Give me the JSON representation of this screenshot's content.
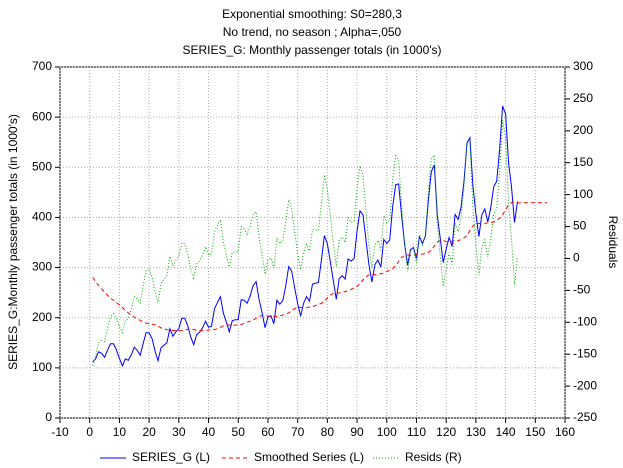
{
  "chart_data": {
    "type": "line",
    "title": [
      "Exponential smoothing:  S0=280,3",
      "No trend, no season   ; Alpha=,050",
      "SERIES_G: Monthly passenger totals (in 1000's)"
    ],
    "ylabel": "SERIES_G:Monthly passenger totals (in 1000's)",
    "y2label": "Residuals",
    "xlim": [
      -10,
      160
    ],
    "xticks": [
      -10,
      0,
      10,
      20,
      30,
      40,
      50,
      60,
      70,
      80,
      90,
      100,
      110,
      120,
      130,
      140,
      150,
      160
    ],
    "ylim": [
      0,
      700
    ],
    "yticks": [
      0,
      100,
      200,
      300,
      400,
      500,
      600,
      700
    ],
    "y2lim": [
      -250,
      300
    ],
    "y2ticks": [
      -250,
      -200,
      -150,
      -100,
      -50,
      0,
      50,
      100,
      150,
      200,
      250,
      300
    ],
    "grid": true,
    "x": [
      1,
      2,
      3,
      4,
      5,
      6,
      7,
      8,
      9,
      10,
      11,
      12,
      13,
      14,
      15,
      16,
      17,
      18,
      19,
      20,
      21,
      22,
      23,
      24,
      25,
      26,
      27,
      28,
      29,
      30,
      31,
      32,
      33,
      34,
      35,
      36,
      37,
      38,
      39,
      40,
      41,
      42,
      43,
      44,
      45,
      46,
      47,
      48,
      49,
      50,
      51,
      52,
      53,
      54,
      55,
      56,
      57,
      58,
      59,
      60,
      61,
      62,
      63,
      64,
      65,
      66,
      67,
      68,
      69,
      70,
      71,
      72,
      73,
      74,
      75,
      76,
      77,
      78,
      79,
      80,
      81,
      82,
      83,
      84,
      85,
      86,
      87,
      88,
      89,
      90,
      91,
      92,
      93,
      94,
      95,
      96,
      97,
      98,
      99,
      100,
      101,
      102,
      103,
      104,
      105,
      106,
      107,
      108,
      109,
      110,
      111,
      112,
      113,
      114,
      115,
      116,
      117,
      118,
      119,
      120,
      121,
      122,
      123,
      124,
      125,
      126,
      127,
      128,
      129,
      130,
      131,
      132,
      133,
      134,
      135,
      136,
      137,
      138,
      139,
      140,
      141,
      142,
      143,
      144,
      145,
      146,
      147,
      148,
      149,
      150,
      151,
      152,
      153,
      154
    ],
    "series": [
      {
        "name": "SERIES_G (L)",
        "color": "#0000ff",
        "dash": "solid",
        "values": [
          112,
          118,
          132,
          129,
          121,
          135,
          148,
          148,
          136,
          119,
          104,
          118,
          115,
          126,
          141,
          135,
          125,
          149,
          170,
          170,
          158,
          133,
          114,
          140,
          145,
          150,
          178,
          163,
          172,
          178,
          199,
          199,
          184,
          162,
          146,
          166,
          171,
          180,
          193,
          181,
          183,
          218,
          230,
          242,
          209,
          191,
          172,
          194,
          196,
          196,
          236,
          235,
          229,
          243,
          264,
          272,
          237,
          211,
          180,
          201,
          204,
          188,
          235,
          227,
          234,
          264,
          302,
          293,
          259,
          229,
          203,
          229,
          242,
          233,
          267,
          269,
          270,
          315,
          364,
          347,
          312,
          274,
          237,
          278,
          284,
          277,
          317,
          313,
          318,
          374,
          413,
          405,
          355,
          306,
          271,
          306,
          315,
          301,
          356,
          348,
          355,
          422,
          465,
          467,
          404,
          347,
          305,
          336,
          340,
          318,
          362,
          348,
          363,
          435,
          491,
          505,
          404,
          359,
          310,
          337,
          360,
          342,
          406,
          396,
          420,
          472,
          548,
          559,
          463,
          407,
          362,
          405,
          417,
          391,
          419,
          461,
          472,
          535,
          622,
          606,
          508,
          461,
          390,
          432,
          null,
          null,
          null,
          null,
          null,
          null,
          null,
          null,
          null,
          null
        ]
      },
      {
        "name": "Smoothed Series (L)",
        "color": "#ff0000",
        "dash": "dashed",
        "values": [
          280.3,
          271.9,
          264.2,
          257.6,
          251.2,
          244.7,
          239.2,
          234.6,
          230.3,
          225.6,
          220.3,
          214.5,
          209.7,
          205.0,
          201.0,
          198.0,
          194.8,
          191.3,
          189.2,
          188.2,
          187.3,
          185.8,
          183.2,
          179.7,
          177.7,
          176.1,
          174.8,
          175.0,
          174.4,
          174.3,
          174.5,
          175.7,
          176.9,
          177.3,
          176.5,
          175.0,
          174.5,
          174.3,
          174.6,
          175.5,
          175.8,
          176.2,
          178.3,
          180.9,
          183.9,
          185.2,
          185.5,
          184.8,
          185.3,
          185.8,
          186.3,
          188.8,
          191.1,
          193.0,
          195.5,
          198.9,
          202.6,
          204.3,
          204.6,
          203.4,
          203.3,
          203.3,
          202.5,
          204.1,
          205.3,
          206.7,
          209.6,
          214.2,
          218.1,
          220.1,
          220.6,
          219.7,
          220.2,
          221.3,
          221.9,
          224.2,
          226.4,
          228.6,
          232.9,
          239.5,
          244.9,
          248.3,
          249.6,
          249.0,
          250.5,
          252.2,
          253.4,
          256.6,
          259.4,
          262.3,
          267.9,
          275.2,
          281.7,
          285.4,
          286.4,
          285.6,
          286.6,
          288.0,
          288.7,
          292.1,
          294.9,
          297.9,
          304.1,
          312.1,
          319.9,
          324.1,
          325.2,
          324.2,
          324.8,
          325.6,
          325.2,
          327.0,
          328.1,
          329.8,
          335.1,
          342.9,
          351.0,
          353.6,
          353.9,
          351.7,
          351.0,
          351.4,
          350.9,
          353.7,
          355.8,
          359.0,
          364.6,
          373.8,
          383.1,
          387.1,
          388.1,
          386.8,
          387.7,
          389.2,
          389.3,
          390.8,
          394.3,
          398.2,
          405.0,
          415.9,
          425.4,
          429.5,
          431.1,
          429.0,
          429.2,
          429.2,
          429.2,
          429.2,
          429.2,
          429.2,
          429.2,
          429.2,
          429.2,
          429.2
        ]
      },
      {
        "name": "Resids (R)",
        "color": "#00aa00",
        "dash": "dotted",
        "axis": "y2",
        "values": [
          -168.3,
          -153.9,
          -132.2,
          -128.6,
          -130.2,
          -109.7,
          -91.2,
          -86.6,
          -94.3,
          -106.6,
          -116.3,
          -96.5,
          -94.7,
          -79.0,
          -60.0,
          -63.0,
          -69.8,
          -42.3,
          -19.2,
          -18.2,
          -29.3,
          -52.8,
          -69.2,
          -39.7,
          -32.7,
          -26.1,
          3.2,
          -12.0,
          -2.4,
          3.7,
          24.5,
          23.3,
          7.1,
          -15.3,
          -30.5,
          -9.0,
          -3.5,
          5.7,
          18.4,
          5.5,
          7.2,
          41.8,
          51.7,
          61.1,
          25.1,
          5.8,
          -13.5,
          9.2,
          10.7,
          10.2,
          49.7,
          46.2,
          37.9,
          50.0,
          68.5,
          73.1,
          34.4,
          6.7,
          -24.6,
          -2.4,
          0.7,
          -15.3,
          32.5,
          22.9,
          28.7,
          57.3,
          92.4,
          78.8,
          40.9,
          8.9,
          -17.6,
          9.3,
          21.8,
          11.7,
          45.1,
          44.8,
          43.6,
          86.4,
          131.1,
          107.5,
          67.1,
          25.7,
          -12.6,
          29.0,
          33.5,
          24.8,
          63.6,
          56.4,
          58.6,
          111.7,
          145.1,
          129.8,
          73.3,
          20.6,
          -15.4,
          20.4,
          28.4,
          13.0,
          67.3,
          55.9,
          60.1,
          124.1,
          160.9,
          154.9,
          84.1,
          22.9,
          -20.2,
          11.8,
          15.2,
          -7.6,
          36.8,
          21.0,
          34.9,
          105.2,
          155.9,
          162.1,
          53.0,
          5.4,
          -43.9,
          -14.7,
          9.0,
          -9.4,
          55.1,
          42.3,
          64.2,
          113.0,
          183.4,
          185.2,
          79.9,
          19.9,
          -26.1,
          18.2,
          29.3,
          1.8,
          29.7,
          70.2,
          77.7,
          136.8,
          217.0,
          190.1,
          82.6,
          31.5,
          -41.1,
          3.0,
          null,
          null,
          null,
          null,
          null,
          null,
          null,
          null,
          null,
          null
        ]
      }
    ]
  }
}
